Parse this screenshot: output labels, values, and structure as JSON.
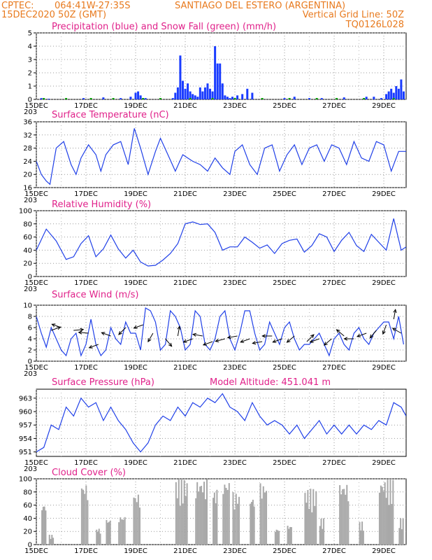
{
  "header": {
    "line1_left": "CPTEC:",
    "line1_coords": "064:41W-27:35S",
    "line1_location": "SANTIAGO DEL ESTERO (ARGENTINA)",
    "line2_left": "15DEC2020 50Z (GMT)",
    "line2_right": "Vertical Grid Line: 50Z",
    "line3_right": "TQ0126L028"
  },
  "colors": {
    "header": "#e87a1e",
    "panel_title": "#e0218a",
    "precip": "#1a3cff",
    "snow": "#00a000",
    "line": "#2040e8",
    "cloud": "#a8a8a8",
    "arrow": "#000000"
  },
  "x_axis": {
    "labels": [
      "15DEC",
      "17DEC",
      "19DEC",
      "21DEC",
      "23DEC",
      "25DEC",
      "27DEC",
      "29DEC"
    ],
    "label_days": [
      0,
      2,
      4,
      6,
      8,
      10,
      12,
      14
    ],
    "fragment": "203",
    "day_range": [
      0,
      14.9
    ]
  },
  "chart_data": [
    {
      "type": "bar",
      "title": "Precipitation (blue) and Snow Fall (green) (mm/h)",
      "ylim": [
        0,
        5
      ],
      "yticks": [
        "0",
        "1",
        "2",
        "3",
        "4",
        "5"
      ],
      "grid": true,
      "series": [
        {
          "name": "Precipitation",
          "x_day": [
            0.2,
            0.5,
            1.9,
            2.7,
            3.4,
            3.8,
            4.0,
            4.1,
            4.2,
            4.4,
            5.5,
            5.6,
            5.7,
            5.8,
            5.9,
            6.0,
            6.1,
            6.2,
            6.3,
            6.4,
            6.5,
            6.6,
            6.7,
            6.8,
            6.9,
            7.0,
            7.1,
            7.2,
            7.3,
            7.4,
            7.5,
            7.6,
            7.7,
            7.8,
            7.9,
            8.1,
            8.3,
            8.5,
            8.7,
            10.0,
            10.4,
            11.0,
            11.5,
            12.4,
            13.3,
            13.6,
            13.9,
            14.1,
            14.2,
            14.3,
            14.4,
            14.5,
            14.6,
            14.7,
            14.8
          ],
          "values": [
            0.1,
            0.05,
            0.1,
            0.15,
            0.1,
            0.2,
            0.5,
            0.6,
            0.3,
            0.1,
            0.1,
            0.5,
            0.9,
            3.3,
            1.4,
            0.8,
            1.2,
            0.6,
            0.4,
            0.3,
            0.2,
            0.9,
            0.6,
            0.9,
            1.2,
            0.8,
            0.6,
            4.0,
            2.7,
            2.7,
            1.2,
            0.3,
            0.2,
            0.1,
            0.2,
            0.3,
            0.4,
            0.8,
            0.5,
            0.1,
            0.2,
            0.1,
            0.1,
            0.15,
            0.2,
            0.2,
            0.1,
            0.4,
            0.6,
            0.8,
            0.5,
            1.0,
            0.8,
            1.5,
            0.6
          ]
        },
        {
          "name": "Snow Fall",
          "x_day": [
            0.3,
            1.2,
            2.2,
            3.1,
            4.3,
            5.0,
            6.2,
            7.1,
            8.0,
            9.1,
            10.2,
            11.3,
            12.1,
            13.2,
            14.4
          ],
          "values": [
            0.05,
            0.05,
            0.05,
            0.05,
            0.05,
            0.05,
            0.05,
            0.05,
            0.05,
            0.05,
            0.05,
            0.05,
            0.05,
            0.05,
            0.05
          ]
        }
      ]
    },
    {
      "type": "line",
      "title": "Surface Temperature (nC)",
      "ylim": [
        16,
        36
      ],
      "yticks": [
        "16",
        "20",
        "24",
        "28",
        "32",
        "36"
      ],
      "grid": true,
      "series": [
        {
          "x_day": [
            0.0,
            0.2,
            0.4,
            0.55,
            0.8,
            1.1,
            1.4,
            1.6,
            1.8,
            2.1,
            2.4,
            2.6,
            2.8,
            3.1,
            3.4,
            3.7,
            3.95,
            4.2,
            4.5,
            4.8,
            5.0,
            5.3,
            5.6,
            5.9,
            6.1,
            6.3,
            6.6,
            6.9,
            7.2,
            7.5,
            7.8,
            8.0,
            8.3,
            8.6,
            8.9,
            9.2,
            9.5,
            9.8,
            10.1,
            10.4,
            10.7,
            11.0,
            11.3,
            11.6,
            11.9,
            12.2,
            12.5,
            12.8,
            13.1,
            13.4,
            13.7,
            14.0,
            14.3,
            14.6,
            14.9
          ],
          "values": [
            24,
            20,
            18,
            17,
            28,
            30,
            23,
            20,
            25,
            29,
            26,
            21,
            26,
            29,
            30,
            23,
            34,
            28,
            20,
            27,
            31,
            26,
            21,
            26,
            25,
            24,
            23,
            21,
            25,
            22,
            20,
            27,
            29,
            23,
            20,
            28,
            29,
            21,
            26,
            29,
            23,
            28,
            29,
            24,
            29,
            28,
            23,
            30,
            25,
            24,
            30,
            29,
            21,
            27,
            27
          ]
        }
      ]
    },
    {
      "type": "line",
      "title": "Relative Humidity (%)",
      "ylim": [
        0,
        100
      ],
      "yticks": [
        "0",
        "20",
        "40",
        "60",
        "80",
        "100"
      ],
      "grid": true,
      "series": [
        {
          "x_day": [
            0.0,
            0.4,
            0.8,
            1.2,
            1.5,
            1.8,
            2.1,
            2.4,
            2.7,
            3.0,
            3.3,
            3.6,
            3.9,
            4.2,
            4.5,
            4.8,
            5.1,
            5.4,
            5.7,
            6.0,
            6.3,
            6.6,
            6.9,
            7.2,
            7.5,
            7.8,
            8.1,
            8.4,
            8.7,
            9.0,
            9.3,
            9.6,
            9.9,
            10.2,
            10.5,
            10.8,
            11.1,
            11.4,
            11.7,
            12.0,
            12.3,
            12.6,
            12.9,
            13.2,
            13.5,
            13.8,
            14.1,
            14.4,
            14.7,
            14.9
          ],
          "values": [
            40,
            72,
            54,
            26,
            30,
            50,
            62,
            30,
            42,
            63,
            42,
            28,
            40,
            22,
            16,
            17,
            25,
            35,
            50,
            80,
            83,
            79,
            80,
            67,
            40,
            45,
            45,
            60,
            52,
            43,
            48,
            35,
            50,
            55,
            57,
            37,
            47,
            65,
            60,
            38,
            55,
            67,
            47,
            38,
            64,
            52,
            40,
            88,
            40,
            45
          ]
        }
      ]
    },
    {
      "type": "line",
      "title": "Surface Wind (m/s)",
      "ylim": [
        0,
        10
      ],
      "yticks": [
        "0",
        "2",
        "4",
        "6",
        "8",
        "10"
      ],
      "grid": true,
      "series": [
        {
          "x_day": [
            0.0,
            0.2,
            0.4,
            0.6,
            0.8,
            1.0,
            1.2,
            1.4,
            1.6,
            1.8,
            2.0,
            2.2,
            2.4,
            2.6,
            2.8,
            3.0,
            3.2,
            3.4,
            3.6,
            3.8,
            4.0,
            4.2,
            4.4,
            4.6,
            4.8,
            5.0,
            5.2,
            5.4,
            5.6,
            5.8,
            6.0,
            6.2,
            6.4,
            6.6,
            6.8,
            7.0,
            7.2,
            7.4,
            7.6,
            7.8,
            8.0,
            8.2,
            8.4,
            8.6,
            8.8,
            9.0,
            9.2,
            9.4,
            9.6,
            9.8,
            10.0,
            10.2,
            10.4,
            10.6,
            10.8,
            11.0,
            11.2,
            11.4,
            11.6,
            11.8,
            12.0,
            12.2,
            12.4,
            12.6,
            12.8,
            13.0,
            13.2,
            13.4,
            13.6,
            13.8,
            14.0,
            14.2,
            14.4,
            14.6,
            14.8
          ],
          "values": [
            8,
            5,
            2.5,
            6,
            4,
            2,
            1,
            4,
            5,
            1,
            3,
            7.5,
            3,
            1,
            2,
            6,
            4,
            3,
            7,
            5,
            5,
            2,
            9.5,
            9,
            7,
            2,
            3,
            9,
            8,
            6,
            2,
            3,
            9,
            8,
            3,
            2,
            4,
            8,
            9,
            4,
            2,
            5,
            9,
            9,
            5,
            2,
            3,
            7,
            5,
            3,
            6,
            7,
            4,
            2,
            3,
            3,
            4,
            5,
            3,
            1,
            4,
            5,
            3,
            2,
            5,
            6,
            4,
            3,
            5,
            6,
            7,
            7,
            4,
            8,
            3
          ]
        }
      ],
      "arrow_days": [
        0.6,
        1.0,
        1.5,
        2.1,
        2.5,
        3.0,
        3.6,
        4.3,
        4.7,
        5.2,
        5.7,
        6.3,
        6.7,
        7.1,
        7.6,
        8.1,
        8.6,
        9.1,
        9.5,
        9.9,
        10.4,
        10.9,
        11.4,
        11.9,
        12.4,
        12.8,
        13.3,
        13.7,
        14.1,
        14.4,
        14.7
      ],
      "arrow_speed": [
        5.5,
        6.0,
        5.5,
        5.0,
        3.0,
        4.5,
        6.0,
        6.5,
        5.0,
        4.0,
        4.5,
        4.0,
        4.5,
        3.5,
        4.0,
        4.5,
        4.0,
        3.5,
        4.5,
        4.0,
        4.5,
        3.5,
        4.0,
        4.0,
        4.5,
        4.0,
        5.0,
        5.5,
        6.5,
        7.5,
        5.0
      ],
      "arrow_angle_deg": [
        20,
        160,
        5,
        175,
        200,
        160,
        225,
        200,
        240,
        310,
        80,
        200,
        170,
        200,
        195,
        190,
        200,
        190,
        180,
        200,
        220,
        45,
        200,
        220,
        140,
        180,
        200,
        230,
        250,
        80,
        150
      ]
    },
    {
      "type": "line",
      "title": "Surface Pressure (hPa)",
      "annotation": "Model Altitude: 451.041 m",
      "ylim": [
        950,
        965
      ],
      "yticks": [
        "951",
        "954",
        "957",
        "960",
        "963"
      ],
      "ytick_values": [
        951,
        954,
        957,
        960,
        963
      ],
      "grid": true,
      "series": [
        {
          "x_day": [
            0.0,
            0.3,
            0.6,
            0.9,
            1.2,
            1.5,
            1.8,
            2.1,
            2.4,
            2.7,
            3.0,
            3.3,
            3.6,
            3.9,
            4.2,
            4.5,
            4.8,
            5.1,
            5.4,
            5.7,
            6.0,
            6.3,
            6.6,
            6.9,
            7.2,
            7.5,
            7.8,
            8.1,
            8.4,
            8.7,
            9.0,
            9.3,
            9.6,
            9.9,
            10.2,
            10.5,
            10.8,
            11.1,
            11.4,
            11.7,
            12.0,
            12.3,
            12.6,
            12.9,
            13.2,
            13.5,
            13.8,
            14.1,
            14.4,
            14.7,
            14.9
          ],
          "values": [
            951,
            952,
            957,
            956,
            961,
            959,
            963,
            961,
            962,
            958,
            961,
            958,
            956,
            953,
            951,
            953,
            957,
            959,
            958,
            961,
            959,
            962,
            961,
            963,
            962,
            964,
            961,
            960,
            958,
            962,
            959,
            957,
            958,
            957,
            955,
            957,
            954,
            956,
            958,
            955,
            957,
            955,
            957,
            955,
            957,
            956,
            958,
            957,
            962,
            961,
            959
          ]
        }
      ]
    },
    {
      "type": "bar",
      "title": "Cloud Cover (%)",
      "ylim": [
        0,
        100
      ],
      "yticks": [
        "0",
        "20",
        "40",
        "60",
        "80",
        "100"
      ],
      "grid": true,
      "bands": [
        [
          0.2,
          0.4,
          65
        ],
        [
          0.5,
          0.7,
          15
        ],
        [
          1.8,
          2.1,
          95
        ],
        [
          2.4,
          2.6,
          25
        ],
        [
          2.8,
          3.0,
          40
        ],
        [
          3.3,
          3.6,
          45
        ],
        [
          3.9,
          4.2,
          80
        ],
        [
          5.6,
          6.1,
          100
        ],
        [
          6.4,
          6.9,
          100
        ],
        [
          7.1,
          7.3,
          85
        ],
        [
          7.5,
          7.8,
          100
        ],
        [
          7.9,
          8.2,
          80
        ],
        [
          8.6,
          8.8,
          75
        ],
        [
          9.0,
          9.3,
          95
        ],
        [
          9.6,
          9.8,
          25
        ],
        [
          10.1,
          10.3,
          30
        ],
        [
          10.8,
          11.3,
          85
        ],
        [
          11.4,
          11.6,
          40
        ],
        [
          12.2,
          12.6,
          95
        ],
        [
          13.0,
          13.2,
          35
        ],
        [
          13.8,
          14.4,
          100
        ],
        [
          14.6,
          14.8,
          40
        ]
      ]
    }
  ]
}
